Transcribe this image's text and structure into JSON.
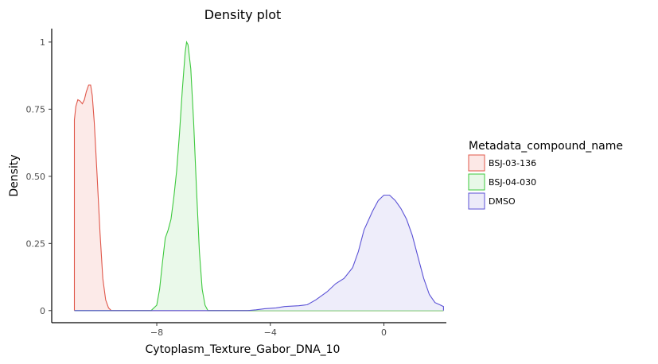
{
  "chart_data": {
    "type": "area",
    "title": "Density plot",
    "xlabel": "Cytoplasm_Texture_Gabor_DNA_10",
    "ylabel": "Density",
    "xlim": [
      -11.7,
      2.2
    ],
    "ylim": [
      -0.045,
      1.05
    ],
    "x_ticks": [
      -8,
      -4,
      0
    ],
    "x_tick_labels": [
      "−8",
      "−4",
      "0"
    ],
    "y_ticks": [
      0,
      0.25,
      0.5,
      0.75,
      1
    ],
    "y_tick_labels": [
      "0",
      "0.25",
      "0.50",
      "0.75",
      "1"
    ],
    "grid": false,
    "legend": {
      "title": "Metadata_compound_name",
      "position": "right"
    },
    "series": [
      {
        "name": "BSJ-03-136",
        "color": "#e0574a",
        "fill": "#fce8e6",
        "points": [
          [
            -10.9,
            0
          ],
          [
            -10.9,
            0.71
          ],
          [
            -10.85,
            0.76
          ],
          [
            -10.78,
            0.785
          ],
          [
            -10.7,
            0.78
          ],
          [
            -10.62,
            0.77
          ],
          [
            -10.55,
            0.785
          ],
          [
            -10.48,
            0.815
          ],
          [
            -10.4,
            0.84
          ],
          [
            -10.33,
            0.84
          ],
          [
            -10.27,
            0.8
          ],
          [
            -10.2,
            0.7
          ],
          [
            -10.1,
            0.5
          ],
          [
            -10.0,
            0.29
          ],
          [
            -9.9,
            0.12
          ],
          [
            -9.8,
            0.04
          ],
          [
            -9.7,
            0.01
          ],
          [
            -9.6,
            0.0
          ],
          [
            2.1,
            0.0
          ]
        ]
      },
      {
        "name": "BSJ-04-030",
        "color": "#3ec93e",
        "fill": "#e8f8e8",
        "points": [
          [
            -10.9,
            0
          ],
          [
            -8.5,
            0
          ],
          [
            -8.2,
            0.0
          ],
          [
            -8.0,
            0.02
          ],
          [
            -7.9,
            0.08
          ],
          [
            -7.8,
            0.18
          ],
          [
            -7.7,
            0.27
          ],
          [
            -7.6,
            0.3
          ],
          [
            -7.5,
            0.34
          ],
          [
            -7.4,
            0.42
          ],
          [
            -7.3,
            0.52
          ],
          [
            -7.2,
            0.66
          ],
          [
            -7.1,
            0.82
          ],
          [
            -7.0,
            0.96
          ],
          [
            -6.95,
            1.0
          ],
          [
            -6.9,
            0.99
          ],
          [
            -6.8,
            0.9
          ],
          [
            -6.7,
            0.7
          ],
          [
            -6.6,
            0.45
          ],
          [
            -6.5,
            0.22
          ],
          [
            -6.4,
            0.08
          ],
          [
            -6.3,
            0.02
          ],
          [
            -6.2,
            0.0
          ],
          [
            2.1,
            0.0
          ]
        ]
      },
      {
        "name": "DMSO",
        "color": "#5b52d6",
        "fill": "#ecebf9",
        "points": [
          [
            -10.9,
            0
          ],
          [
            -4.8,
            0
          ],
          [
            -4.5,
            0.003
          ],
          [
            -4.2,
            0.007
          ],
          [
            -3.8,
            0.01
          ],
          [
            -3.5,
            0.015
          ],
          [
            -3.0,
            0.018
          ],
          [
            -2.7,
            0.022
          ],
          [
            -2.4,
            0.04
          ],
          [
            -2.0,
            0.07
          ],
          [
            -1.7,
            0.1
          ],
          [
            -1.4,
            0.12
          ],
          [
            -1.1,
            0.16
          ],
          [
            -0.9,
            0.22
          ],
          [
            -0.7,
            0.3
          ],
          [
            -0.4,
            0.37
          ],
          [
            -0.2,
            0.41
          ],
          [
            0.0,
            0.43
          ],
          [
            0.2,
            0.43
          ],
          [
            0.4,
            0.41
          ],
          [
            0.6,
            0.38
          ],
          [
            0.8,
            0.34
          ],
          [
            1.0,
            0.28
          ],
          [
            1.2,
            0.2
          ],
          [
            1.4,
            0.12
          ],
          [
            1.6,
            0.06
          ],
          [
            1.8,
            0.03
          ],
          [
            2.0,
            0.02
          ],
          [
            2.1,
            0.015
          ],
          [
            2.1,
            0.0
          ]
        ]
      }
    ]
  }
}
